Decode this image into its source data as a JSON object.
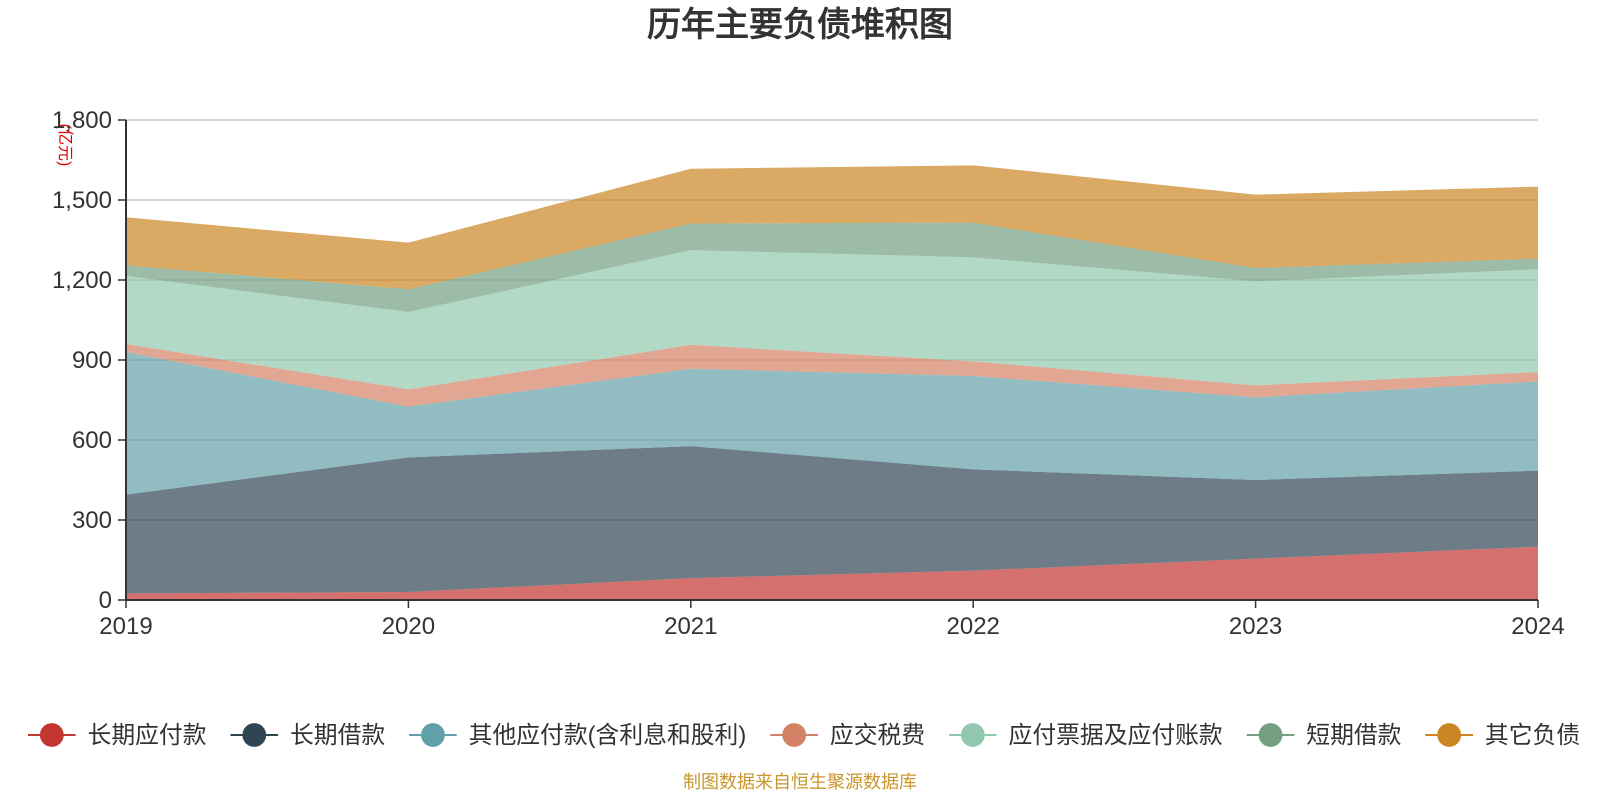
{
  "chart_data": {
    "type": "area",
    "stacked": true,
    "title": "历年主要负债堆积图",
    "unit": "(亿元)",
    "x": [
      "2019",
      "2020",
      "2021",
      "2022",
      "2023",
      "2024"
    ],
    "ylim": [
      0,
      1800
    ],
    "yticks": [
      "0",
      "300",
      "600",
      "900",
      "1,200",
      "1,500",
      "1,800"
    ],
    "ytick_values": [
      0,
      300,
      600,
      900,
      1200,
      1500,
      1800
    ],
    "grid": true,
    "legend_position": "bottom",
    "series": [
      {
        "name": "长期应付款",
        "color": "#c23531",
        "values": [
          25,
          30,
          82,
          110,
          155,
          200
        ]
      },
      {
        "name": "长期借款",
        "color": "#2f4554",
        "values": [
          370,
          505,
          495,
          380,
          295,
          285
        ]
      },
      {
        "name": "其他应付款(含利息和股利)",
        "color": "#61a0a8",
        "values": [
          535,
          190,
          290,
          350,
          310,
          335
        ]
      },
      {
        "name": "应交税费",
        "color": "#d48265",
        "values": [
          30,
          65,
          90,
          55,
          45,
          35
        ]
      },
      {
        "name": "应付票据及应付账款",
        "color": "#91c7ae",
        "values": [
          255,
          290,
          355,
          390,
          390,
          385
        ]
      },
      {
        "name": "短期借款",
        "color": "#749f83",
        "values": [
          40,
          85,
          100,
          130,
          50,
          40
        ]
      },
      {
        "name": "其它负债",
        "color": "#ca8622",
        "values": [
          180,
          175,
          205,
          215,
          275,
          270
        ]
      }
    ],
    "source_note": "制图数据来自恒生聚源数据库"
  }
}
